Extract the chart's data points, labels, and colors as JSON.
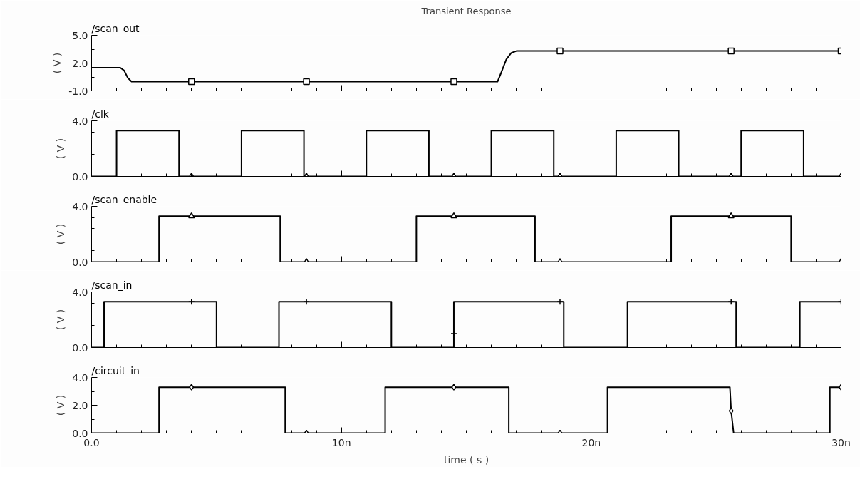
{
  "chart_data": [
    {
      "type": "line",
      "title": "Transient Response",
      "ylabel": "( V )",
      "xlim": [
        0,
        30
      ],
      "xticks": [
        0,
        10,
        20,
        30
      ],
      "ylim": [
        -1,
        5
      ],
      "yticks": [
        {
          "value": -1,
          "label": "-1.0"
        },
        {
          "value": 2,
          "label": "2.0"
        },
        {
          "value": 5,
          "label": "5.0"
        }
      ],
      "tick_labels": "y",
      "grid": false,
      "series": [
        {
          "name": "/scan_out",
          "color": "#000000",
          "x": [
            0,
            1.15,
            1.3,
            1.45,
            1.6,
            1.7,
            16.25,
            16.4,
            16.6,
            16.8,
            17.0,
            30
          ],
          "values": [
            1.5,
            1.5,
            1.2,
            0.4,
            0,
            0,
            0,
            1.0,
            2.4,
            3.1,
            3.3,
            3.3
          ]
        },
        {
          "type": "scatter",
          "marker": "square",
          "color": "#000000",
          "x": [
            4.0,
            8.6,
            14.5,
            18.75,
            25.6,
            30
          ],
          "values": [
            0,
            0,
            0,
            3.3,
            3.3,
            3.3
          ]
        }
      ]
    },
    {
      "type": "line",
      "ylabel": "( V )",
      "xlim": [
        0,
        30
      ],
      "xticks": [
        0,
        10,
        20,
        30
      ],
      "ylim": [
        0,
        4
      ],
      "yticks": [
        {
          "value": 0,
          "label": "0.0"
        },
        {
          "value": 4,
          "label": "4.0"
        }
      ],
      "tick_labels": "y",
      "grid": false,
      "series": [
        {
          "name": "/clk",
          "color": "#000000",
          "x": [
            0,
            1,
            1,
            3.5,
            3.5,
            6,
            6,
            8.5,
            8.5,
            11,
            11,
            13.5,
            13.5,
            16,
            16,
            18.5,
            18.5,
            21,
            21,
            23.5,
            23.5,
            26,
            26,
            28.5,
            28.5,
            30
          ],
          "values": [
            0,
            0,
            3.3,
            3.3,
            0,
            0,
            3.3,
            3.3,
            0,
            0,
            3.3,
            3.3,
            0,
            0,
            3.3,
            3.3,
            0,
            0,
            3.3,
            3.3,
            0,
            0,
            3.3,
            3.3,
            0,
            0
          ]
        },
        {
          "type": "scatter",
          "marker": "triangle",
          "color": "#000000",
          "x": [
            4.0,
            8.6,
            14.5,
            18.75,
            25.6,
            30
          ],
          "values": [
            0,
            0,
            0,
            0,
            0,
            0
          ]
        }
      ]
    },
    {
      "type": "line",
      "ylabel": "( V )",
      "xlim": [
        0,
        30
      ],
      "xticks": [
        0,
        10,
        20,
        30
      ],
      "ylim": [
        0,
        4
      ],
      "yticks": [
        {
          "value": 0,
          "label": "0.0"
        },
        {
          "value": 4,
          "label": "4.0"
        }
      ],
      "tick_labels": "y",
      "grid": false,
      "series": [
        {
          "name": "/scan_enable",
          "color": "#000000",
          "x": [
            0,
            2.7,
            2.7,
            7.55,
            7.55,
            13,
            13,
            17.75,
            17.75,
            23.2,
            23.2,
            28,
            28,
            30
          ],
          "values": [
            0,
            0,
            3.3,
            3.3,
            0,
            0,
            3.3,
            3.3,
            0,
            0,
            3.3,
            3.3,
            0,
            0
          ]
        },
        {
          "type": "scatter",
          "marker": "triangle",
          "color": "#000000",
          "x": [
            4.0,
            8.6,
            14.5,
            18.75,
            25.6,
            30
          ],
          "values": [
            3.3,
            0,
            3.3,
            0,
            3.3,
            0
          ]
        }
      ]
    },
    {
      "type": "line",
      "ylabel": "( V )",
      "xlim": [
        0,
        30
      ],
      "xticks": [
        0,
        10,
        20,
        30
      ],
      "ylim": [
        0,
        4
      ],
      "yticks": [
        {
          "value": 0,
          "label": "0.0"
        },
        {
          "value": 4,
          "label": "4.0"
        }
      ],
      "tick_labels": "y",
      "grid": false,
      "series": [
        {
          "name": "/scan_in",
          "color": "#000000",
          "x": [
            0,
            0.5,
            0.5,
            5,
            5,
            7.5,
            7.5,
            12,
            12,
            14.5,
            14.5,
            18.9,
            18.9,
            21.45,
            21.45,
            25.8,
            25.8,
            28.35,
            28.35,
            30
          ],
          "values": [
            0,
            0,
            3.3,
            3.3,
            0,
            0,
            3.3,
            3.3,
            0,
            0,
            3.3,
            3.3,
            0,
            0,
            3.3,
            3.3,
            0,
            0,
            3.3,
            3.3
          ]
        },
        {
          "type": "scatter",
          "marker": "cross",
          "color": "#000000",
          "x": [
            4.0,
            8.6,
            14.5,
            18.75,
            25.6,
            30
          ],
          "values": [
            3.3,
            3.3,
            1.0,
            3.3,
            3.3,
            3.3
          ]
        }
      ]
    },
    {
      "type": "line",
      "ylabel": "( V )",
      "xlabel": "time ( s )",
      "xlim": [
        0,
        30
      ],
      "xticks": [
        {
          "value": 0,
          "label": "0.0"
        },
        {
          "value": 10,
          "label": "10n"
        },
        {
          "value": 20,
          "label": "20n"
        },
        {
          "value": 30,
          "label": "30n"
        }
      ],
      "ylim": [
        0,
        4
      ],
      "yticks": [
        {
          "value": 0,
          "label": "0.0"
        },
        {
          "value": 2,
          "label": "2.0"
        },
        {
          "value": 4,
          "label": "4.0"
        }
      ],
      "grid": false,
      "series": [
        {
          "name": "/circuit_in",
          "color": "#000000",
          "x": [
            0,
            2.7,
            2.7,
            7.75,
            7.75,
            11.75,
            11.75,
            16.7,
            16.7,
            20.65,
            20.65,
            25.55,
            25.6,
            25.7,
            29.55,
            29.55,
            30
          ],
          "values": [
            0,
            0,
            3.3,
            3.3,
            0,
            0,
            3.3,
            3.3,
            0,
            0,
            3.3,
            3.3,
            1.6,
            0,
            0,
            3.3,
            3.3
          ]
        },
        {
          "type": "scatter",
          "marker": "diamond",
          "color": "#000000",
          "x": [
            4.0,
            8.6,
            14.5,
            18.75,
            25.6,
            30
          ],
          "values": [
            3.3,
            0,
            3.3,
            0,
            1.6,
            3.3
          ]
        }
      ]
    }
  ]
}
